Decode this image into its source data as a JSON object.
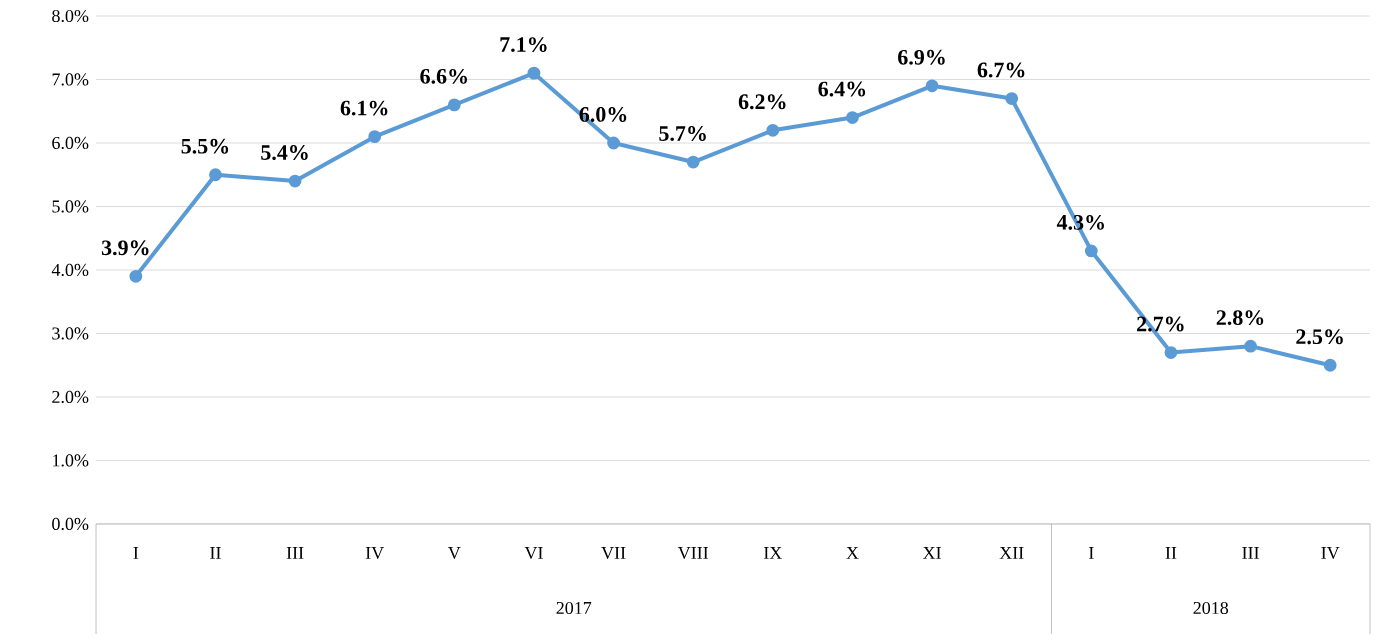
{
  "chart_data": {
    "type": "line",
    "categories": [
      "I",
      "II",
      "III",
      "IV",
      "V",
      "VI",
      "VII",
      "VIII",
      "IX",
      "X",
      "XI",
      "XII",
      "I",
      "II",
      "III",
      "IV"
    ],
    "series": [
      {
        "color": "#5b9bd5",
        "values": [
          3.9,
          5.5,
          5.4,
          6.1,
          6.6,
          7.1,
          6.0,
          5.7,
          6.2,
          6.4,
          6.9,
          6.7,
          4.3,
          2.7,
          2.8,
          2.5
        ],
        "value_labels": [
          "3.9%",
          "5.5%",
          "5.4%",
          "6.1%",
          "6.6%",
          "7.1%",
          "6.0%",
          "5.7%",
          "6.2%",
          "6.4%",
          "6.9%",
          "6.7%",
          "4.3%",
          "2.7%",
          "2.8%",
          "2.5%"
        ]
      }
    ],
    "annotations": [
      "2017",
      "2018"
    ],
    "ylim": [
      0,
      8
    ],
    "yticks": [
      {
        "value": 0,
        "label": "0.0%"
      },
      {
        "value": 1,
        "label": "1.0%"
      },
      {
        "value": 2,
        "label": "2.0%"
      },
      {
        "value": 3,
        "label": "3.0%"
      },
      {
        "value": 4,
        "label": "4.0%"
      },
      {
        "value": 5,
        "label": "5.0%"
      },
      {
        "value": 6,
        "label": "6.0%"
      },
      {
        "value": 7,
        "label": "7.0%"
      },
      {
        "value": 8,
        "label": "8.0%"
      }
    ],
    "grid": "y",
    "marker": "circle",
    "line_style": "solid"
  }
}
